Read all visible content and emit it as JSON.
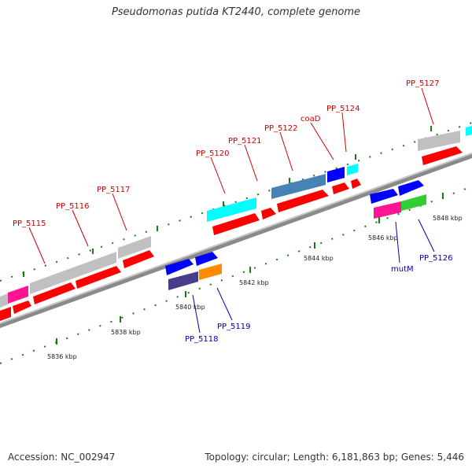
{
  "title": "Pseudomonas putida KT2440, complete genome",
  "footer": {
    "accession": "Accession: NC_002947",
    "summary": "Topology: circular; Length: 6,181,863 bp; Genes: 5,446"
  },
  "colors": {
    "backbone": "#888888",
    "tick": "#1a7a1a",
    "label_top": "#cc0000",
    "label_bottom": "#0000aa"
  },
  "scale_labels": [
    "5836 kbp",
    "5838 kbp",
    "5840 kbp",
    "5842 kbp",
    "5844 kbp",
    "5846 kbp",
    "5848 kbp"
  ],
  "gene_labels_top": [
    "PP_5115",
    "PP_5116",
    "PP_5117",
    "PP_5120",
    "PP_5121",
    "PP_5122",
    "coaD",
    "PP_5124",
    "PP_5127"
  ],
  "gene_labels_bottom": [
    "PP_5118",
    "PP_5119",
    "mutM",
    "PP_5126"
  ],
  "feature_colors": [
    "#ff0000",
    "#c0c0c0",
    "#ff1493",
    "#00ffff",
    "#4682b4",
    "#0000ff",
    "#483d8b",
    "#ff8c00",
    "#32cd32"
  ]
}
